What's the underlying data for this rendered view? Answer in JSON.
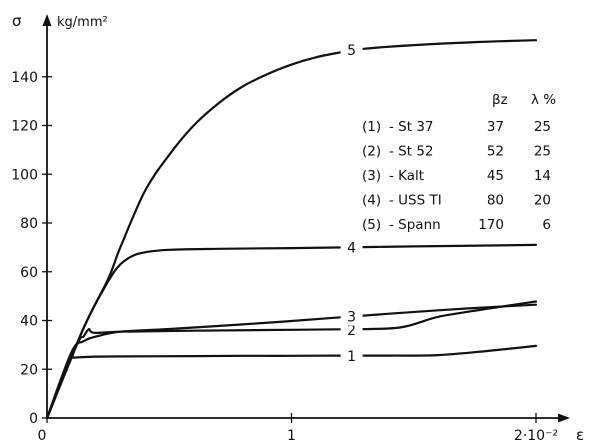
{
  "chart_data": {
    "type": "line",
    "title": "",
    "ylabel": "σ",
    "yunit": "kg/mm²",
    "xlabel": "ε",
    "xlim": [
      0,
      2
    ],
    "ylim": [
      0,
      160
    ],
    "x_ticks": [
      {
        "value": 0,
        "label": "0"
      },
      {
        "value": 1,
        "label": "1"
      },
      {
        "value": 2,
        "label": "2·10⁻²"
      }
    ],
    "y_ticks": [
      {
        "value": 0,
        "label": "0"
      },
      {
        "value": 20,
        "label": "20"
      },
      {
        "value": 40,
        "label": "40"
      },
      {
        "value": 60,
        "label": "60"
      },
      {
        "value": 80,
        "label": "80"
      },
      {
        "value": 100,
        "label": "100"
      },
      {
        "value": 120,
        "label": "120"
      },
      {
        "value": 140,
        "label": "140"
      }
    ],
    "series": [
      {
        "name": "1",
        "points": [
          [
            0,
            0
          ],
          [
            0.1,
            24.6
          ],
          [
            0.11,
            24.8
          ],
          [
            0.2,
            25.2
          ],
          [
            0.4,
            25.3
          ],
          [
            0.6,
            25.4
          ],
          [
            0.8,
            25.5
          ],
          [
            1.0,
            25.5
          ],
          [
            1.2,
            25.6
          ],
          [
            1.4,
            25.6
          ],
          [
            1.6,
            25.8
          ],
          [
            1.8,
            27.5
          ],
          [
            2.0,
            29.6
          ]
        ],
        "label": "1",
        "label_at": [
          1.25,
          25.5
        ]
      },
      {
        "name": "2",
        "points": [
          [
            0,
            0
          ],
          [
            0.12,
            29.5
          ],
          [
            0.15,
            33.5
          ],
          [
            0.17,
            36.4
          ],
          [
            0.18,
            35.4
          ],
          [
            0.2,
            34.9
          ],
          [
            0.3,
            35.4
          ],
          [
            0.6,
            35.8
          ],
          [
            0.9,
            36.1
          ],
          [
            1.2,
            36.4
          ],
          [
            1.44,
            37.1
          ],
          [
            1.6,
            41.5
          ],
          [
            1.8,
            44.8
          ],
          [
            2.0,
            47.8
          ]
        ],
        "label": "2",
        "label_at": [
          1.25,
          36.2
        ]
      },
      {
        "name": "3",
        "points": [
          [
            0,
            0
          ],
          [
            0.1,
            27
          ],
          [
            0.15,
            31.5
          ],
          [
            0.2,
            33.4
          ],
          [
            0.3,
            35.4
          ],
          [
            0.5,
            36.5
          ],
          [
            0.8,
            38.4
          ],
          [
            1.0,
            39.8
          ],
          [
            1.2,
            41.3
          ],
          [
            1.4,
            42.8
          ],
          [
            1.6,
            44.2
          ],
          [
            1.8,
            45.4
          ],
          [
            2.0,
            46.5
          ]
        ],
        "label": "3",
        "label_at": [
          1.25,
          41.6
        ]
      },
      {
        "name": "4",
        "points": [
          [
            0,
            0
          ],
          [
            0.15,
            37
          ],
          [
            0.25,
            56
          ],
          [
            0.3,
            63
          ],
          [
            0.35,
            66.5
          ],
          [
            0.4,
            68
          ],
          [
            0.5,
            69
          ],
          [
            0.7,
            69.4
          ],
          [
            1.0,
            69.7
          ],
          [
            1.5,
            70.4
          ],
          [
            2.0,
            71
          ]
        ],
        "label": "4",
        "label_at": [
          1.25,
          70
        ]
      },
      {
        "name": "5",
        "points": [
          [
            0,
            0
          ],
          [
            0.15,
            37
          ],
          [
            0.25,
            57
          ],
          [
            0.3,
            70
          ],
          [
            0.4,
            93
          ],
          [
            0.5,
            108
          ],
          [
            0.6,
            120
          ],
          [
            0.7,
            129
          ],
          [
            0.8,
            136
          ],
          [
            0.9,
            141
          ],
          [
            1.0,
            145
          ],
          [
            1.1,
            148
          ],
          [
            1.2,
            150
          ],
          [
            1.3,
            151.5
          ],
          [
            1.5,
            153
          ],
          [
            1.75,
            154.2
          ],
          [
            2.0,
            155
          ]
        ],
        "label": "5",
        "label_at": [
          1.25,
          151
        ]
      }
    ],
    "table": {
      "headers": [
        "βz",
        "λ %"
      ],
      "rows": [
        {
          "id": "(1)",
          "material": "- St 37",
          "beta_z": "37",
          "lambda": "25"
        },
        {
          "id": "(2)",
          "material": "- St 52",
          "beta_z": "52",
          "lambda": "25"
        },
        {
          "id": "(3)",
          "material": "- Kalt",
          "beta_z": "45",
          "lambda": "14"
        },
        {
          "id": "(4)",
          "material": "- USS TI",
          "beta_z": "80",
          "lambda": "20"
        },
        {
          "id": "(5)",
          "material": "- Spann",
          "beta_z": "170",
          "lambda": "6"
        }
      ]
    },
    "grid": false,
    "legend": "table-right"
  }
}
